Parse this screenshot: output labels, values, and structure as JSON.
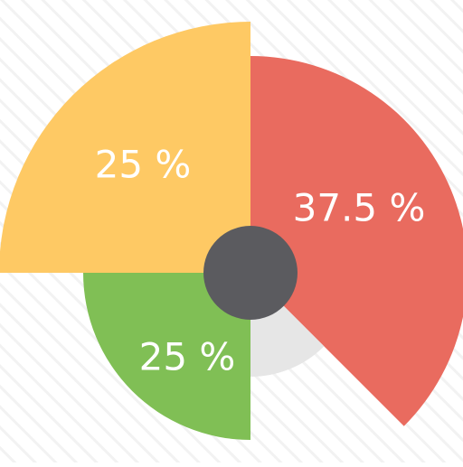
{
  "chart_data": {
    "type": "pie",
    "style": "exploded radial pie with varying radii and a dark center hub",
    "slices": [
      {
        "label": "37.5 %",
        "value": 37.5,
        "color": "#E96B5F"
      },
      {
        "label": "",
        "value": 12.5,
        "color": "#E6E6E6"
      },
      {
        "label": "25 %",
        "value": 25,
        "color": "#80BF55"
      },
      {
        "label": "25 %",
        "value": 25,
        "color": "#FEC964"
      }
    ],
    "hub_color": "#5B5B5F",
    "background_stripe_color": "#F2F2F2"
  }
}
